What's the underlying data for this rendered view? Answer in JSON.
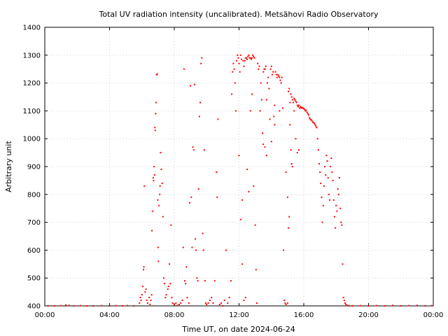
{
  "chart_data": {
    "type": "scatter",
    "title": "Total UV radiation intensity (uncalibrated). Metsähovi Radio Observatory",
    "xlabel": "Time UT, on date 2024-06-24",
    "ylabel": "Arbitrary unit",
    "xlim": [
      0,
      24
    ],
    "ylim": [
      400,
      1400
    ],
    "x_ticks": [
      0,
      4,
      8,
      12,
      16,
      20,
      24
    ],
    "x_tick_labels": [
      "00:00",
      "04:00",
      "08:00",
      "12:00",
      "16:00",
      "20:00",
      "00:00"
    ],
    "y_ticks": [
      400,
      500,
      600,
      700,
      800,
      900,
      1000,
      1100,
      1200,
      1300,
      1400
    ],
    "y_tick_labels": [
      "400",
      "500",
      "600",
      "700",
      "800",
      "900",
      "1000",
      "1100",
      "1200",
      "1300",
      "1400"
    ],
    "grid": true,
    "series": [
      {
        "color": "#ff0000",
        "marker": "dot",
        "points": [
          [
            0.2,
            400
          ],
          [
            0.6,
            400
          ],
          [
            1.0,
            401
          ],
          [
            1.3,
            403
          ],
          [
            1.5,
            402
          ],
          [
            1.8,
            400
          ],
          [
            2.2,
            401
          ],
          [
            2.6,
            400
          ],
          [
            3.0,
            400
          ],
          [
            3.5,
            401
          ],
          [
            4.0,
            400
          ],
          [
            4.4,
            401
          ],
          [
            4.8,
            400
          ],
          [
            5.1,
            401
          ],
          [
            5.5,
            400
          ],
          [
            5.85,
            410
          ],
          [
            5.9,
            430
          ],
          [
            5.95,
            420
          ],
          [
            6.0,
            440
          ],
          [
            6.05,
            470
          ],
          [
            6.1,
            530
          ],
          [
            6.12,
            540
          ],
          [
            6.15,
            830
          ],
          [
            6.2,
            450
          ],
          [
            6.25,
            460
          ],
          [
            6.3,
            420
          ],
          [
            6.35,
            410
          ],
          [
            6.45,
            430
          ],
          [
            6.5,
            405
          ],
          [
            6.55,
            420
          ],
          [
            6.6,
            440
          ],
          [
            6.62,
            670
          ],
          [
            6.65,
            740
          ],
          [
            6.7,
            860
          ],
          [
            6.72,
            850
          ],
          [
            6.75,
            900
          ],
          [
            6.78,
            870
          ],
          [
            6.8,
            1040
          ],
          [
            6.82,
            1030
          ],
          [
            6.85,
            1090
          ],
          [
            6.87,
            1130
          ],
          [
            6.9,
            1230
          ],
          [
            6.95,
            1232
          ],
          [
            6.98,
            780
          ],
          [
            7.0,
            610
          ],
          [
            7.02,
            560
          ],
          [
            7.05,
            760
          ],
          [
            7.1,
            800
          ],
          [
            7.12,
            830
          ],
          [
            7.15,
            950
          ],
          [
            7.2,
            890
          ],
          [
            7.25,
            840
          ],
          [
            7.3,
            720
          ],
          [
            7.35,
            500
          ],
          [
            7.4,
            480
          ],
          [
            7.45,
            430
          ],
          [
            7.5,
            440
          ],
          [
            7.6,
            460
          ],
          [
            7.65,
            470
          ],
          [
            7.7,
            550
          ],
          [
            7.75,
            480
          ],
          [
            7.8,
            690
          ],
          [
            7.85,
            430
          ],
          [
            7.9,
            410
          ],
          [
            8.0,
            405
          ],
          [
            8.1,
            410
          ],
          [
            8.2,
            402
          ],
          [
            8.3,
            405
          ],
          [
            8.4,
            410
          ],
          [
            8.5,
            420
          ],
          [
            8.55,
            610
          ],
          [
            8.6,
            1250
          ],
          [
            8.65,
            490
          ],
          [
            8.7,
            480
          ],
          [
            8.75,
            540
          ],
          [
            8.8,
            430
          ],
          [
            8.9,
            410
          ],
          [
            8.95,
            770
          ],
          [
            9.0,
            1190
          ],
          [
            9.05,
            790
          ],
          [
            9.1,
            610
          ],
          [
            9.15,
            970
          ],
          [
            9.2,
            960
          ],
          [
            9.25,
            1195
          ],
          [
            9.3,
            640
          ],
          [
            9.35,
            600
          ],
          [
            9.4,
            500
          ],
          [
            9.45,
            490
          ],
          [
            9.5,
            820
          ],
          [
            9.55,
            1080
          ],
          [
            9.6,
            1130
          ],
          [
            9.65,
            1270
          ],
          [
            9.7,
            1290
          ],
          [
            9.75,
            660
          ],
          [
            9.8,
            600
          ],
          [
            9.85,
            960
          ],
          [
            9.9,
            490
          ],
          [
            9.95,
            410
          ],
          [
            10.0,
            405
          ],
          [
            10.1,
            410
          ],
          [
            10.2,
            420
          ],
          [
            10.3,
            430
          ],
          [
            10.4,
            410
          ],
          [
            10.5,
            490
          ],
          [
            10.6,
            880
          ],
          [
            10.65,
            790
          ],
          [
            10.7,
            1070
          ],
          [
            10.8,
            405
          ],
          [
            10.9,
            410
          ],
          [
            11.0,
            400
          ],
          [
            11.1,
            420
          ],
          [
            11.2,
            600
          ],
          [
            11.3,
            410
          ],
          [
            11.4,
            430
          ],
          [
            11.5,
            490
          ],
          [
            11.55,
            1160
          ],
          [
            11.6,
            1240
          ],
          [
            11.65,
            1270
          ],
          [
            11.7,
            1250
          ],
          [
            11.75,
            1200
          ],
          [
            11.8,
            1100
          ],
          [
            11.85,
            1280
          ],
          [
            11.9,
            1300
          ],
          [
            11.95,
            1290
          ],
          [
            12.0,
            1270
          ],
          [
            12.05,
            1240
          ],
          [
            12.1,
            1300
          ],
          [
            12.15,
            1285
          ],
          [
            12.2,
            780
          ],
          [
            12.25,
            1280
          ],
          [
            12.3,
            1260
          ],
          [
            12.35,
            1280
          ],
          [
            12.4,
            1290
          ],
          [
            12.45,
            1290
          ],
          [
            12.5,
            1285
          ],
          [
            12.55,
            1295
          ],
          [
            12.6,
            1300
          ],
          [
            12.65,
            1290
          ],
          [
            12.7,
            1290
          ],
          [
            12.75,
            1285
          ],
          [
            12.8,
            1290
          ],
          [
            12.85,
            1300
          ],
          [
            12.9,
            1295
          ],
          [
            12.95,
            1290
          ],
          [
            12.0,
            940
          ],
          [
            12.1,
            710
          ],
          [
            12.2,
            550
          ],
          [
            12.3,
            420
          ],
          [
            12.4,
            430
          ],
          [
            12.5,
            890
          ],
          [
            12.6,
            810
          ],
          [
            12.7,
            1100
          ],
          [
            12.8,
            1160
          ],
          [
            12.9,
            830
          ],
          [
            13.0,
            690
          ],
          [
            13.05,
            530
          ],
          [
            13.1,
            410
          ],
          [
            13.15,
            1270
          ],
          [
            13.2,
            1250
          ],
          [
            13.25,
            1260
          ],
          [
            13.3,
            1100
          ],
          [
            13.35,
            1200
          ],
          [
            13.4,
            1140
          ],
          [
            13.45,
            1020
          ],
          [
            13.5,
            1240
          ],
          [
            13.55,
            1250
          ],
          [
            13.6,
            1250
          ],
          [
            13.65,
            1260
          ],
          [
            13.7,
            1140
          ],
          [
            13.75,
            1200
          ],
          [
            13.8,
            1220
          ],
          [
            13.85,
            1180
          ],
          [
            13.9,
            1070
          ],
          [
            13.95,
            1250
          ],
          [
            14.0,
            1260
          ],
          [
            14.05,
            1230
          ],
          [
            14.1,
            1240
          ],
          [
            14.15,
            1080
          ],
          [
            14.2,
            1120
          ],
          [
            14.25,
            1240
          ],
          [
            14.3,
            1230
          ],
          [
            14.35,
            1220
          ],
          [
            14.4,
            1230
          ],
          [
            14.45,
            1225
          ],
          [
            14.5,
            1220
          ],
          [
            14.55,
            1210
          ],
          [
            14.6,
            1200
          ],
          [
            14.65,
            1220
          ],
          [
            14.7,
            1110
          ],
          [
            14.75,
            600
          ],
          [
            14.8,
            420
          ],
          [
            14.85,
            410
          ],
          [
            14.9,
            405
          ],
          [
            15.0,
            410
          ],
          [
            15.05,
            1170
          ],
          [
            15.1,
            1180
          ],
          [
            15.15,
            1130
          ],
          [
            15.2,
            1160
          ],
          [
            15.25,
            1150
          ],
          [
            15.3,
            1140
          ],
          [
            15.35,
            1130
          ],
          [
            15.4,
            1145
          ],
          [
            15.45,
            1140
          ],
          [
            15.5,
            1135
          ],
          [
            15.55,
            1130
          ],
          [
            15.6,
            1120
          ],
          [
            15.65,
            1115
          ],
          [
            15.7,
            1120
          ],
          [
            15.75,
            1110
          ],
          [
            15.8,
            1115
          ],
          [
            15.85,
            1110
          ],
          [
            15.9,
            1112
          ],
          [
            15.95,
            1110
          ],
          [
            16.0,
            1108
          ],
          [
            16.05,
            1105
          ],
          [
            16.1,
            1100
          ],
          [
            16.15,
            1102
          ],
          [
            16.2,
            1095
          ],
          [
            16.25,
            1090
          ],
          [
            16.3,
            1085
          ],
          [
            16.35,
            1075
          ],
          [
            16.4,
            1070
          ],
          [
            16.45,
            1068
          ],
          [
            16.5,
            1065
          ],
          [
            16.55,
            1060
          ],
          [
            16.6,
            1058
          ],
          [
            16.65,
            1055
          ],
          [
            16.7,
            1050
          ],
          [
            16.75,
            1045
          ],
          [
            16.8,
            1040
          ],
          [
            13.5,
            980
          ],
          [
            13.6,
            970
          ],
          [
            13.7,
            940
          ],
          [
            14.0,
            990
          ],
          [
            14.2,
            1050
          ],
          [
            14.5,
            1100
          ],
          [
            14.9,
            880
          ],
          [
            15.0,
            790
          ],
          [
            15.05,
            680
          ],
          [
            15.1,
            720
          ],
          [
            15.15,
            1050
          ],
          [
            15.2,
            960
          ],
          [
            15.25,
            910
          ],
          [
            15.3,
            900
          ],
          [
            15.4,
            1100
          ],
          [
            15.5,
            1000
          ],
          [
            15.6,
            950
          ],
          [
            15.7,
            960
          ],
          [
            16.85,
            1000
          ],
          [
            16.9,
            960
          ],
          [
            16.95,
            910
          ],
          [
            17.0,
            880
          ],
          [
            17.05,
            840
          ],
          [
            17.1,
            790
          ],
          [
            17.15,
            700
          ],
          [
            17.2,
            760
          ],
          [
            17.25,
            830
          ],
          [
            17.3,
            900
          ],
          [
            17.35,
            870
          ],
          [
            17.4,
            940
          ],
          [
            17.45,
            920
          ],
          [
            17.5,
            860
          ],
          [
            17.55,
            800
          ],
          [
            17.6,
            780
          ],
          [
            17.65,
            900
          ],
          [
            17.7,
            930
          ],
          [
            17.75,
            880
          ],
          [
            17.8,
            850
          ],
          [
            17.85,
            780
          ],
          [
            17.9,
            720
          ],
          [
            17.95,
            680
          ],
          [
            18.0,
            760
          ],
          [
            18.05,
            740
          ],
          [
            18.1,
            820
          ],
          [
            18.15,
            800
          ],
          [
            18.2,
            860
          ],
          [
            18.25,
            750
          ],
          [
            18.3,
            700
          ],
          [
            18.35,
            690
          ],
          [
            18.4,
            550
          ],
          [
            18.45,
            430
          ],
          [
            18.5,
            420
          ],
          [
            18.55,
            410
          ],
          [
            18.6,
            405
          ],
          [
            18.7,
            402
          ],
          [
            18.8,
            400
          ],
          [
            19.0,
            400
          ],
          [
            19.5,
            401
          ],
          [
            20.0,
            400
          ],
          [
            20.5,
            401
          ],
          [
            21.0,
            400
          ],
          [
            21.5,
            402
          ],
          [
            22.0,
            400
          ],
          [
            22.5,
            401
          ],
          [
            23.0,
            402
          ],
          [
            23.5,
            400
          ],
          [
            23.9,
            401
          ]
        ]
      }
    ]
  }
}
